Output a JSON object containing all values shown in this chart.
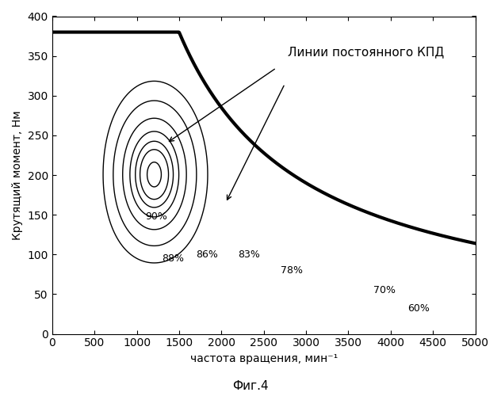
{
  "title": "",
  "xlabel": "частота вращения, мин⁻¹",
  "ylabel": "Крутящий момент, Нм",
  "caption": "Фиг.4",
  "annotation": "Линии постоянного КПД",
  "xlim": [
    0,
    5000
  ],
  "ylim": [
    0,
    400
  ],
  "xticks": [
    0,
    500,
    1000,
    1500,
    2000,
    2500,
    3000,
    3500,
    4000,
    4500,
    5000
  ],
  "yticks": [
    0,
    50,
    100,
    150,
    200,
    250,
    300,
    350,
    400
  ],
  "efficiency_levels": [
    0.6,
    0.7,
    0.78,
    0.83,
    0.86,
    0.88,
    0.9
  ],
  "efficiency_labels": [
    "60%",
    "70%",
    "78%",
    "83%",
    "86%",
    "88%",
    "90%"
  ],
  "background_color": "#ffffff",
  "line_color": "#000000",
  "max_torque_flat": 380,
  "max_torque_flat_end_rpm": 1500,
  "max_power_rpm_ref": 1500,
  "max_power": 59690
}
